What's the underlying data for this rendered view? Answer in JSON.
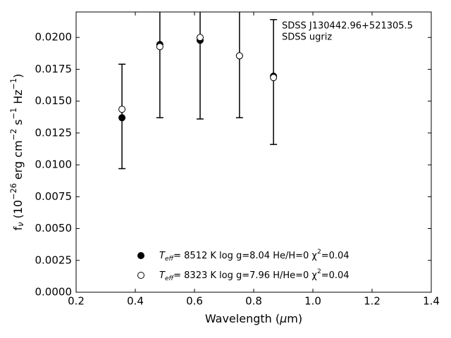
{
  "chart_data": {
    "type": "errorbar-scatter",
    "xlabel": "Wavelength (μm)",
    "ylabel": "fν (10−26 erg cm−2 s−1 Hz−1)",
    "annotation": [
      "SDSS J130442.96+521305.5",
      "SDSS ugriz"
    ],
    "x": [
      0.355,
      0.483,
      0.619,
      0.752,
      0.867
    ],
    "errorbars": {
      "color": "#000000",
      "values": [
        0.0138,
        0.0195,
        0.0198,
        0.0186,
        0.0165
      ],
      "errors": [
        0.0041,
        0.0058,
        0.0062,
        0.0049,
        0.0049
      ]
    },
    "series": [
      {
        "name": "Teff=  8512 K  log g=8.04  He/H=0  χ2=0.04",
        "color": "#000000",
        "filled": true,
        "values": [
          0.0137,
          0.01945,
          0.01978,
          0.01856,
          0.01696
        ]
      },
      {
        "name": "Teff=  8323 K  log g=7.96  H/He=0  χ2=0.04",
        "color": "#000000",
        "filled": false,
        "values": [
          0.01436,
          0.01928,
          0.02,
          0.01856,
          0.01685
        ]
      }
    ],
    "xlim": [
      0.2,
      1.4
    ],
    "ylim": [
      0,
      0.022
    ],
    "xticks": [
      0.2,
      0.4,
      0.6,
      0.8,
      {
        "value": 1.0,
        "label": "1.0"
      },
      1.2,
      1.4
    ],
    "yticks": [
      {
        "value": 0,
        "label": "0.0000"
      },
      {
        "value": 0.0025,
        "label": "0.0025"
      },
      {
        "value": 0.005,
        "label": "0.0050"
      },
      {
        "value": 0.0075,
        "label": "0.0075"
      },
      {
        "value": 0.01,
        "label": "0.0100"
      },
      {
        "value": 0.0125,
        "label": "0.0125"
      },
      {
        "value": 0.015,
        "label": "0.0150"
      },
      {
        "value": 0.0175,
        "label": "0.0175"
      },
      {
        "value": 0.02,
        "label": "0.0200"
      }
    ],
    "legend": "lower center"
  }
}
